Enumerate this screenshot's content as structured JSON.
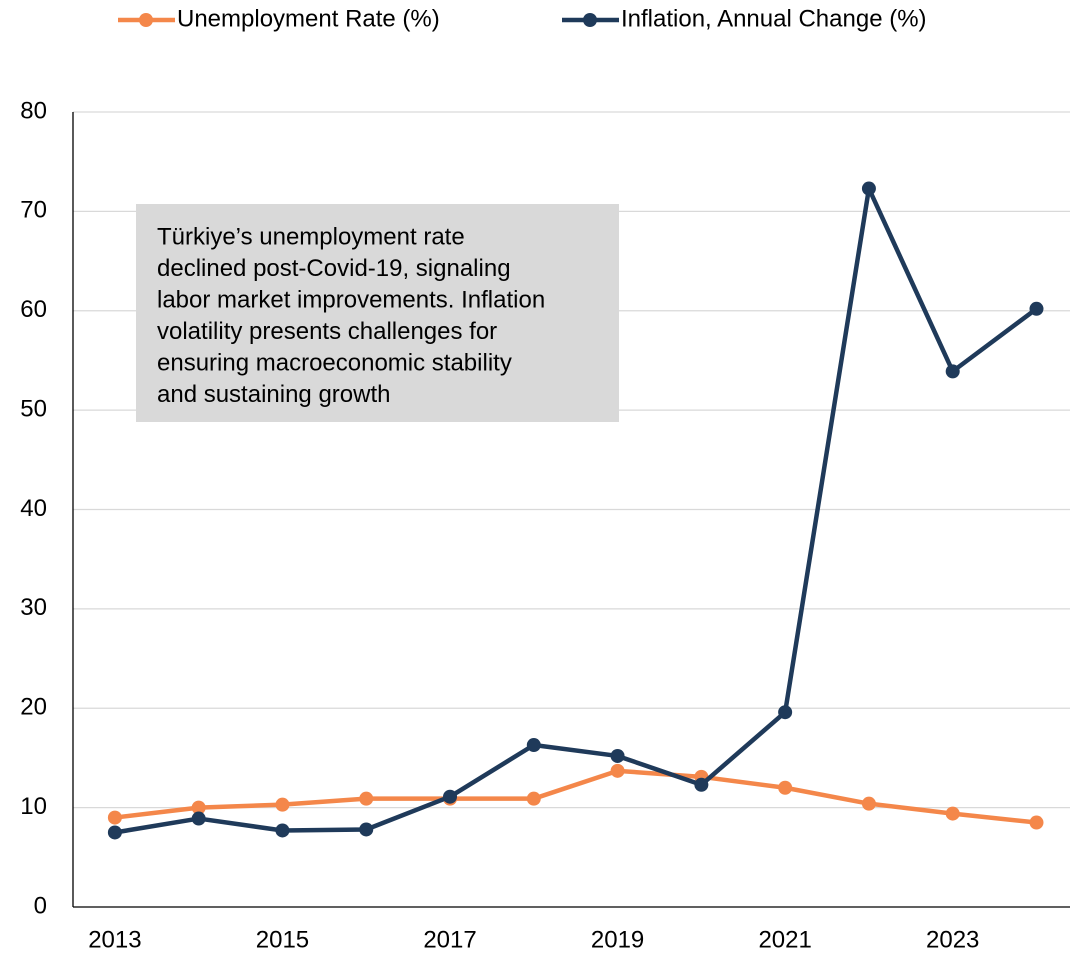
{
  "chart_data": {
    "type": "line",
    "x": [
      2013,
      2014,
      2015,
      2016,
      2017,
      2018,
      2019,
      2020,
      2021,
      2022,
      2023,
      2024
    ],
    "series": [
      {
        "name": "Unemployment Rate (%)",
        "color": "#f4874a",
        "values": [
          9.0,
          10.0,
          10.3,
          10.9,
          10.9,
          10.9,
          13.7,
          13.1,
          12.0,
          10.4,
          9.4,
          8.5
        ]
      },
      {
        "name": "Inflation, Annual Change (%)",
        "color": "#1f3a5a",
        "values": [
          7.5,
          8.9,
          7.7,
          7.8,
          11.1,
          16.3,
          15.2,
          12.3,
          19.6,
          72.3,
          53.9,
          60.2
        ]
      }
    ],
    "xlim": [
      2012.5,
      2024.4
    ],
    "xticks": [
      2013,
      2015,
      2017,
      2019,
      2021,
      2023
    ],
    "ylim": [
      0,
      80
    ],
    "yticks": [
      0,
      10,
      20,
      30,
      40,
      50,
      60,
      70,
      80
    ],
    "grid": true,
    "legend": "top",
    "annotation": [
      "Türkiye’s unemployment rate",
      "declined post-Covid-19, signaling",
      "labor market improvements. Inflation",
      "volatility presents challenges for",
      "ensuring macroeconomic stability",
      "and sustaining growth"
    ]
  }
}
